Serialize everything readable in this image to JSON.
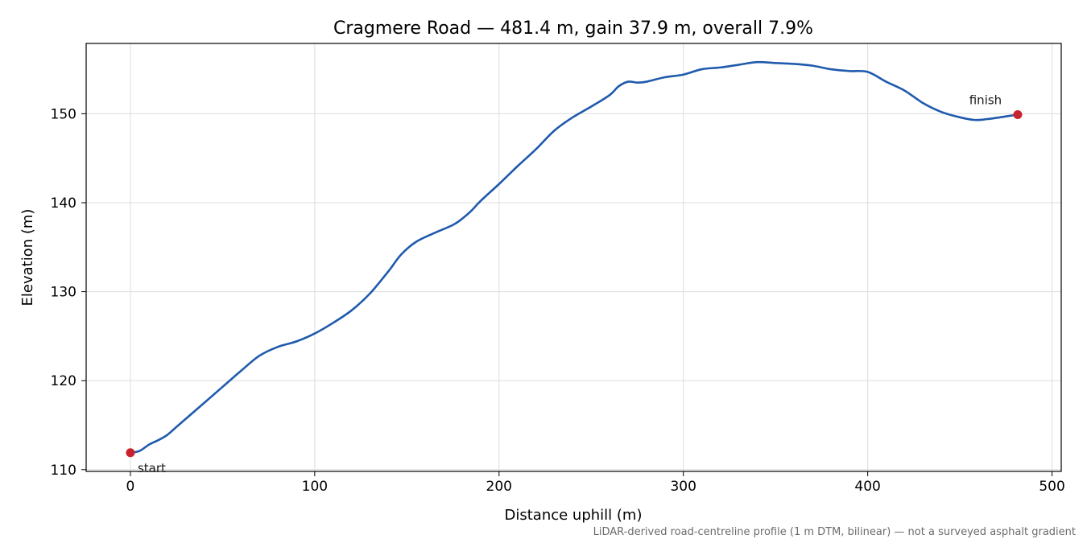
{
  "chart_data": {
    "type": "line",
    "title": "Cragmere Road — 481.4 m, gain 37.9 m, overall 7.9%",
    "xlabel": "Distance uphill (m)",
    "ylabel": "Elevation (m)",
    "xlim": [
      -24,
      505
    ],
    "ylim": [
      109.8,
      157.9
    ],
    "xticks": [
      0,
      100,
      200,
      300,
      400,
      500
    ],
    "yticks": [
      110,
      120,
      130,
      140,
      150
    ],
    "grid": true,
    "line_color": "#1f5aad",
    "marker_color": "#c9212e",
    "series": [
      {
        "x": [
          0,
          5,
          10,
          15,
          20,
          25,
          30,
          40,
          50,
          60,
          70,
          80,
          90,
          100,
          110,
          120,
          130,
          140,
          147,
          155,
          165,
          175,
          180,
          185,
          190,
          200,
          210,
          220,
          230,
          240,
          250,
          260,
          265,
          270,
          275,
          280,
          290,
          300,
          310,
          320,
          330,
          340,
          350,
          360,
          370,
          380,
          390,
          400,
          410,
          420,
          430,
          440,
          450,
          458,
          465,
          475,
          481.4
        ],
        "y": [
          111.9,
          112.1,
          112.8,
          113.3,
          113.9,
          114.8,
          115.7,
          117.5,
          119.3,
          121.1,
          122.8,
          123.8,
          124.4,
          125.3,
          126.5,
          127.9,
          129.8,
          132.3,
          134.2,
          135.6,
          136.6,
          137.5,
          138.2,
          139.1,
          140.2,
          142.1,
          144.1,
          146.0,
          148.1,
          149.6,
          150.8,
          152.1,
          153.1,
          153.6,
          153.5,
          153.6,
          154.1,
          154.4,
          155.0,
          155.2,
          155.5,
          155.8,
          155.7,
          155.6,
          155.4,
          155.0,
          154.8,
          154.7,
          153.6,
          152.6,
          151.2,
          150.2,
          149.6,
          149.3,
          149.4,
          149.7,
          149.9
        ]
      }
    ],
    "annotations": {
      "start_label": "start",
      "finish_label": "finish",
      "start_point": [
        0,
        111.9
      ],
      "finish_point": [
        481.4,
        149.9
      ]
    },
    "footnote": "LiDAR-derived road-centreline profile (1 m DTM, bilinear) — not a surveyed asphalt gradient"
  }
}
